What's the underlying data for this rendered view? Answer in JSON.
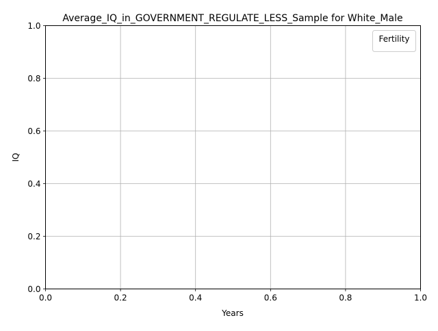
{
  "chart_data": {
    "type": "line",
    "title": "Average_IQ_in_GOVERNMENT_REGULATE_LESS_Sample for White_Male",
    "xlabel": "Years",
    "ylabel": "IQ",
    "xlim": [
      0.0,
      1.0
    ],
    "ylim": [
      0.0,
      1.0
    ],
    "x_ticks": [
      "0.0",
      "0.2",
      "0.4",
      "0.6",
      "0.8",
      "1.0"
    ],
    "y_ticks": [
      "0.0",
      "0.2",
      "0.4",
      "0.6",
      "0.8",
      "1.0"
    ],
    "grid": true,
    "legend": {
      "title": "Fertility",
      "position": "upper-right",
      "entries": []
    },
    "series": []
  }
}
